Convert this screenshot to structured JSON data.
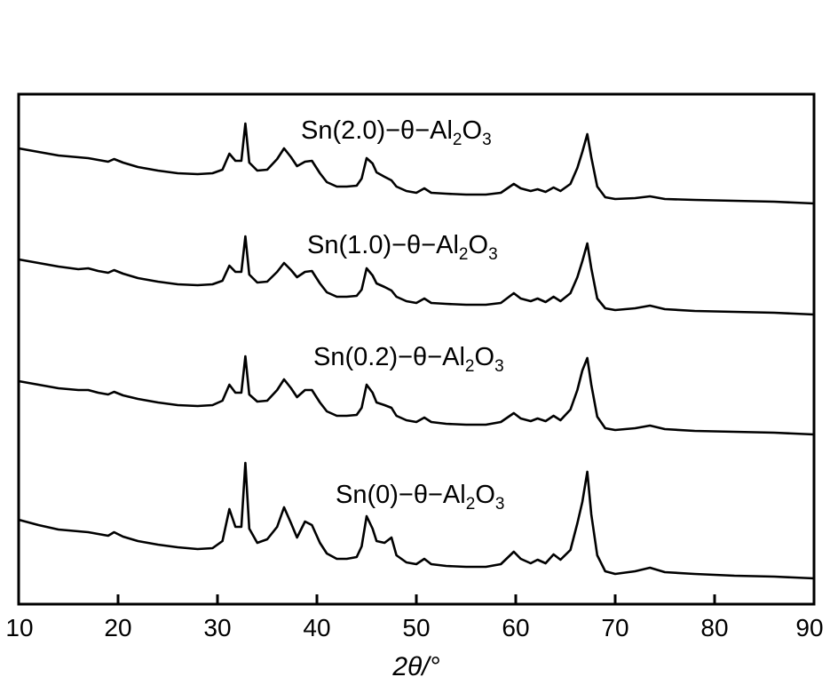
{
  "chart_data": {
    "type": "line",
    "title": "",
    "xlabel": "2θ/°",
    "ylabel": "",
    "xlim": [
      10,
      90
    ],
    "xticks": [
      10,
      20,
      30,
      40,
      50,
      60,
      70,
      80,
      90
    ],
    "yaxis_numbered": false,
    "grid": false,
    "legend": "inline labels",
    "colors": {
      "line": "#000000",
      "axis": "#000000",
      "background": "#ffffff"
    },
    "series": [
      {
        "name": "Sn(2.0)−θ−Al2O3",
        "label_main": "Sn(2.0)−",
        "label_theta": "θ",
        "label_rest": "−Al",
        "label_sub2": "2",
        "label_o": "O",
        "label_sub3": "3",
        "points": [
          [
            10,
            0.62
          ],
          [
            12,
            0.58
          ],
          [
            14,
            0.54
          ],
          [
            16,
            0.52
          ],
          [
            17,
            0.51
          ],
          [
            18,
            0.49
          ],
          [
            19,
            0.47
          ],
          [
            19.6,
            0.5
          ],
          [
            20.5,
            0.46
          ],
          [
            22,
            0.41
          ],
          [
            24,
            0.37
          ],
          [
            26,
            0.34
          ],
          [
            28,
            0.33
          ],
          [
            29.5,
            0.34
          ],
          [
            30.5,
            0.38
          ],
          [
            31.2,
            0.56
          ],
          [
            31.8,
            0.48
          ],
          [
            32.4,
            0.48
          ],
          [
            32.8,
            0.9
          ],
          [
            33.2,
            0.46
          ],
          [
            34,
            0.37
          ],
          [
            35,
            0.38
          ],
          [
            36,
            0.5
          ],
          [
            36.7,
            0.62
          ],
          [
            37.4,
            0.52
          ],
          [
            38,
            0.42
          ],
          [
            38.8,
            0.47
          ],
          [
            39.5,
            0.48
          ],
          [
            40.3,
            0.34
          ],
          [
            41,
            0.24
          ],
          [
            42,
            0.19
          ],
          [
            43,
            0.19
          ],
          [
            44,
            0.2
          ],
          [
            44.5,
            0.28
          ],
          [
            45,
            0.51
          ],
          [
            45.6,
            0.45
          ],
          [
            46,
            0.35
          ],
          [
            46.8,
            0.3
          ],
          [
            47.5,
            0.26
          ],
          [
            48,
            0.19
          ],
          [
            49,
            0.14
          ],
          [
            50,
            0.12
          ],
          [
            50.8,
            0.17
          ],
          [
            51.5,
            0.12
          ],
          [
            53,
            0.11
          ],
          [
            55,
            0.1
          ],
          [
            57,
            0.1
          ],
          [
            58.5,
            0.12
          ],
          [
            59.8,
            0.22
          ],
          [
            60.5,
            0.17
          ],
          [
            61.5,
            0.14
          ],
          [
            62.2,
            0.16
          ],
          [
            63,
            0.13
          ],
          [
            63.8,
            0.18
          ],
          [
            64.5,
            0.14
          ],
          [
            65.5,
            0.22
          ],
          [
            66.2,
            0.4
          ],
          [
            66.7,
            0.58
          ],
          [
            67.2,
            0.78
          ],
          [
            67.6,
            0.52
          ],
          [
            68.2,
            0.19
          ],
          [
            69,
            0.07
          ],
          [
            70,
            0.05
          ],
          [
            72,
            0.06
          ],
          [
            73.5,
            0.08
          ],
          [
            75,
            0.05
          ],
          [
            78,
            0.04
          ],
          [
            82,
            0.03
          ],
          [
            86,
            0.02
          ],
          [
            90,
            0.0
          ]
        ]
      },
      {
        "name": "Sn(1.0)−θ−Al2O3",
        "label_main": "Sn(1.0)−",
        "label_theta": "θ",
        "label_rest": "−Al",
        "label_sub2": "2",
        "label_o": "O",
        "label_sub3": "3",
        "points": [
          [
            10,
            0.62
          ],
          [
            12,
            0.58
          ],
          [
            14,
            0.54
          ],
          [
            16,
            0.51
          ],
          [
            17,
            0.52
          ],
          [
            18,
            0.49
          ],
          [
            19,
            0.47
          ],
          [
            19.6,
            0.5
          ],
          [
            20.5,
            0.46
          ],
          [
            22,
            0.41
          ],
          [
            24,
            0.37
          ],
          [
            26,
            0.34
          ],
          [
            28,
            0.33
          ],
          [
            29.5,
            0.34
          ],
          [
            30.5,
            0.38
          ],
          [
            31.2,
            0.55
          ],
          [
            31.8,
            0.48
          ],
          [
            32.4,
            0.48
          ],
          [
            32.8,
            0.88
          ],
          [
            33.2,
            0.45
          ],
          [
            34,
            0.36
          ],
          [
            35,
            0.37
          ],
          [
            36,
            0.48
          ],
          [
            36.7,
            0.58
          ],
          [
            37.4,
            0.5
          ],
          [
            38,
            0.42
          ],
          [
            38.8,
            0.48
          ],
          [
            39.5,
            0.49
          ],
          [
            40.3,
            0.35
          ],
          [
            41,
            0.25
          ],
          [
            42,
            0.2
          ],
          [
            43,
            0.2
          ],
          [
            44,
            0.21
          ],
          [
            44.5,
            0.28
          ],
          [
            45,
            0.52
          ],
          [
            45.6,
            0.44
          ],
          [
            46,
            0.35
          ],
          [
            46.8,
            0.31
          ],
          [
            47.5,
            0.27
          ],
          [
            48,
            0.2
          ],
          [
            49,
            0.15
          ],
          [
            50,
            0.13
          ],
          [
            50.8,
            0.18
          ],
          [
            51.5,
            0.13
          ],
          [
            53,
            0.12
          ],
          [
            55,
            0.11
          ],
          [
            57,
            0.11
          ],
          [
            58.5,
            0.13
          ],
          [
            59.8,
            0.24
          ],
          [
            60.5,
            0.18
          ],
          [
            61.5,
            0.15
          ],
          [
            62.2,
            0.18
          ],
          [
            63,
            0.14
          ],
          [
            63.8,
            0.2
          ],
          [
            64.5,
            0.15
          ],
          [
            65.5,
            0.24
          ],
          [
            66.2,
            0.42
          ],
          [
            66.7,
            0.6
          ],
          [
            67.2,
            0.8
          ],
          [
            67.6,
            0.52
          ],
          [
            68.2,
            0.18
          ],
          [
            69,
            0.07
          ],
          [
            70,
            0.05
          ],
          [
            72,
            0.07
          ],
          [
            73.5,
            0.1
          ],
          [
            75,
            0.06
          ],
          [
            78,
            0.04
          ],
          [
            82,
            0.03
          ],
          [
            86,
            0.02
          ],
          [
            90,
            0.0
          ]
        ]
      },
      {
        "name": "Sn(0.2)−θ−Al2O3",
        "label_main": "Sn(0.2)−",
        "label_theta": "θ",
        "label_rest": "−Al",
        "label_sub2": "2",
        "label_o": "O",
        "label_sub3": "3",
        "points": [
          [
            10,
            0.6
          ],
          [
            12,
            0.56
          ],
          [
            14,
            0.52
          ],
          [
            16,
            0.5
          ],
          [
            17,
            0.5
          ],
          [
            18,
            0.47
          ],
          [
            19,
            0.45
          ],
          [
            19.6,
            0.48
          ],
          [
            20.5,
            0.44
          ],
          [
            22,
            0.4
          ],
          [
            24,
            0.36
          ],
          [
            26,
            0.33
          ],
          [
            28,
            0.32
          ],
          [
            29.5,
            0.33
          ],
          [
            30.5,
            0.38
          ],
          [
            31.2,
            0.56
          ],
          [
            31.8,
            0.47
          ],
          [
            32.4,
            0.47
          ],
          [
            32.8,
            0.88
          ],
          [
            33.2,
            0.45
          ],
          [
            34,
            0.37
          ],
          [
            35,
            0.38
          ],
          [
            36,
            0.5
          ],
          [
            36.7,
            0.62
          ],
          [
            37.4,
            0.52
          ],
          [
            38,
            0.42
          ],
          [
            38.8,
            0.5
          ],
          [
            39.5,
            0.5
          ],
          [
            40.3,
            0.36
          ],
          [
            41,
            0.26
          ],
          [
            42,
            0.21
          ],
          [
            43,
            0.21
          ],
          [
            44,
            0.22
          ],
          [
            44.5,
            0.3
          ],
          [
            45,
            0.56
          ],
          [
            45.6,
            0.47
          ],
          [
            46,
            0.36
          ],
          [
            46.8,
            0.33
          ],
          [
            47.5,
            0.3
          ],
          [
            48,
            0.21
          ],
          [
            49,
            0.16
          ],
          [
            50,
            0.14
          ],
          [
            50.8,
            0.19
          ],
          [
            51.5,
            0.14
          ],
          [
            53,
            0.12
          ],
          [
            55,
            0.11
          ],
          [
            57,
            0.11
          ],
          [
            58.5,
            0.14
          ],
          [
            59.8,
            0.24
          ],
          [
            60.5,
            0.18
          ],
          [
            61.5,
            0.15
          ],
          [
            62.2,
            0.18
          ],
          [
            63,
            0.15
          ],
          [
            63.8,
            0.21
          ],
          [
            64.5,
            0.16
          ],
          [
            65.5,
            0.28
          ],
          [
            66.2,
            0.5
          ],
          [
            66.7,
            0.72
          ],
          [
            67.2,
            0.86
          ],
          [
            67.6,
            0.56
          ],
          [
            68.2,
            0.2
          ],
          [
            69,
            0.07
          ],
          [
            70,
            0.05
          ],
          [
            72,
            0.07
          ],
          [
            73.5,
            0.1
          ],
          [
            75,
            0.06
          ],
          [
            78,
            0.04
          ],
          [
            82,
            0.03
          ],
          [
            86,
            0.02
          ],
          [
            90,
            0.0
          ]
        ]
      },
      {
        "name": "Sn(0)−θ−Al2O3",
        "label_main": "Sn(0)−",
        "label_theta": "θ",
        "label_rest": "−Al",
        "label_sub2": "2",
        "label_o": "O",
        "label_sub3": "3",
        "points": [
          [
            10,
            0.66
          ],
          [
            12,
            0.6
          ],
          [
            14,
            0.55
          ],
          [
            16,
            0.53
          ],
          [
            17,
            0.52
          ],
          [
            18,
            0.5
          ],
          [
            19,
            0.48
          ],
          [
            19.6,
            0.52
          ],
          [
            20.5,
            0.47
          ],
          [
            22,
            0.42
          ],
          [
            24,
            0.38
          ],
          [
            26,
            0.35
          ],
          [
            28,
            0.33
          ],
          [
            29.5,
            0.34
          ],
          [
            30.5,
            0.42
          ],
          [
            31.2,
            0.78
          ],
          [
            31.8,
            0.58
          ],
          [
            32.4,
            0.58
          ],
          [
            32.8,
            1.3
          ],
          [
            33.2,
            0.56
          ],
          [
            34,
            0.4
          ],
          [
            35,
            0.44
          ],
          [
            36,
            0.58
          ],
          [
            36.7,
            0.8
          ],
          [
            37.4,
            0.62
          ],
          [
            38,
            0.46
          ],
          [
            38.8,
            0.64
          ],
          [
            39.5,
            0.6
          ],
          [
            40.3,
            0.4
          ],
          [
            41,
            0.28
          ],
          [
            42,
            0.22
          ],
          [
            43,
            0.22
          ],
          [
            44,
            0.24
          ],
          [
            44.5,
            0.36
          ],
          [
            45,
            0.7
          ],
          [
            45.6,
            0.56
          ],
          [
            46,
            0.42
          ],
          [
            46.8,
            0.4
          ],
          [
            47.5,
            0.46
          ],
          [
            48,
            0.26
          ],
          [
            49,
            0.18
          ],
          [
            50,
            0.16
          ],
          [
            50.8,
            0.22
          ],
          [
            51.5,
            0.16
          ],
          [
            53,
            0.14
          ],
          [
            55,
            0.13
          ],
          [
            57,
            0.13
          ],
          [
            58.5,
            0.16
          ],
          [
            59.8,
            0.3
          ],
          [
            60.5,
            0.22
          ],
          [
            61.5,
            0.17
          ],
          [
            62.2,
            0.21
          ],
          [
            63,
            0.17
          ],
          [
            63.8,
            0.27
          ],
          [
            64.5,
            0.21
          ],
          [
            65.5,
            0.32
          ],
          [
            66.2,
            0.62
          ],
          [
            66.7,
            0.86
          ],
          [
            67.2,
            1.2
          ],
          [
            67.6,
            0.72
          ],
          [
            68.2,
            0.26
          ],
          [
            69,
            0.08
          ],
          [
            70,
            0.05
          ],
          [
            72,
            0.08
          ],
          [
            73.5,
            0.12
          ],
          [
            75,
            0.07
          ],
          [
            78,
            0.05
          ],
          [
            82,
            0.03
          ],
          [
            86,
            0.02
          ],
          [
            90,
            0.0
          ]
        ]
      }
    ]
  }
}
